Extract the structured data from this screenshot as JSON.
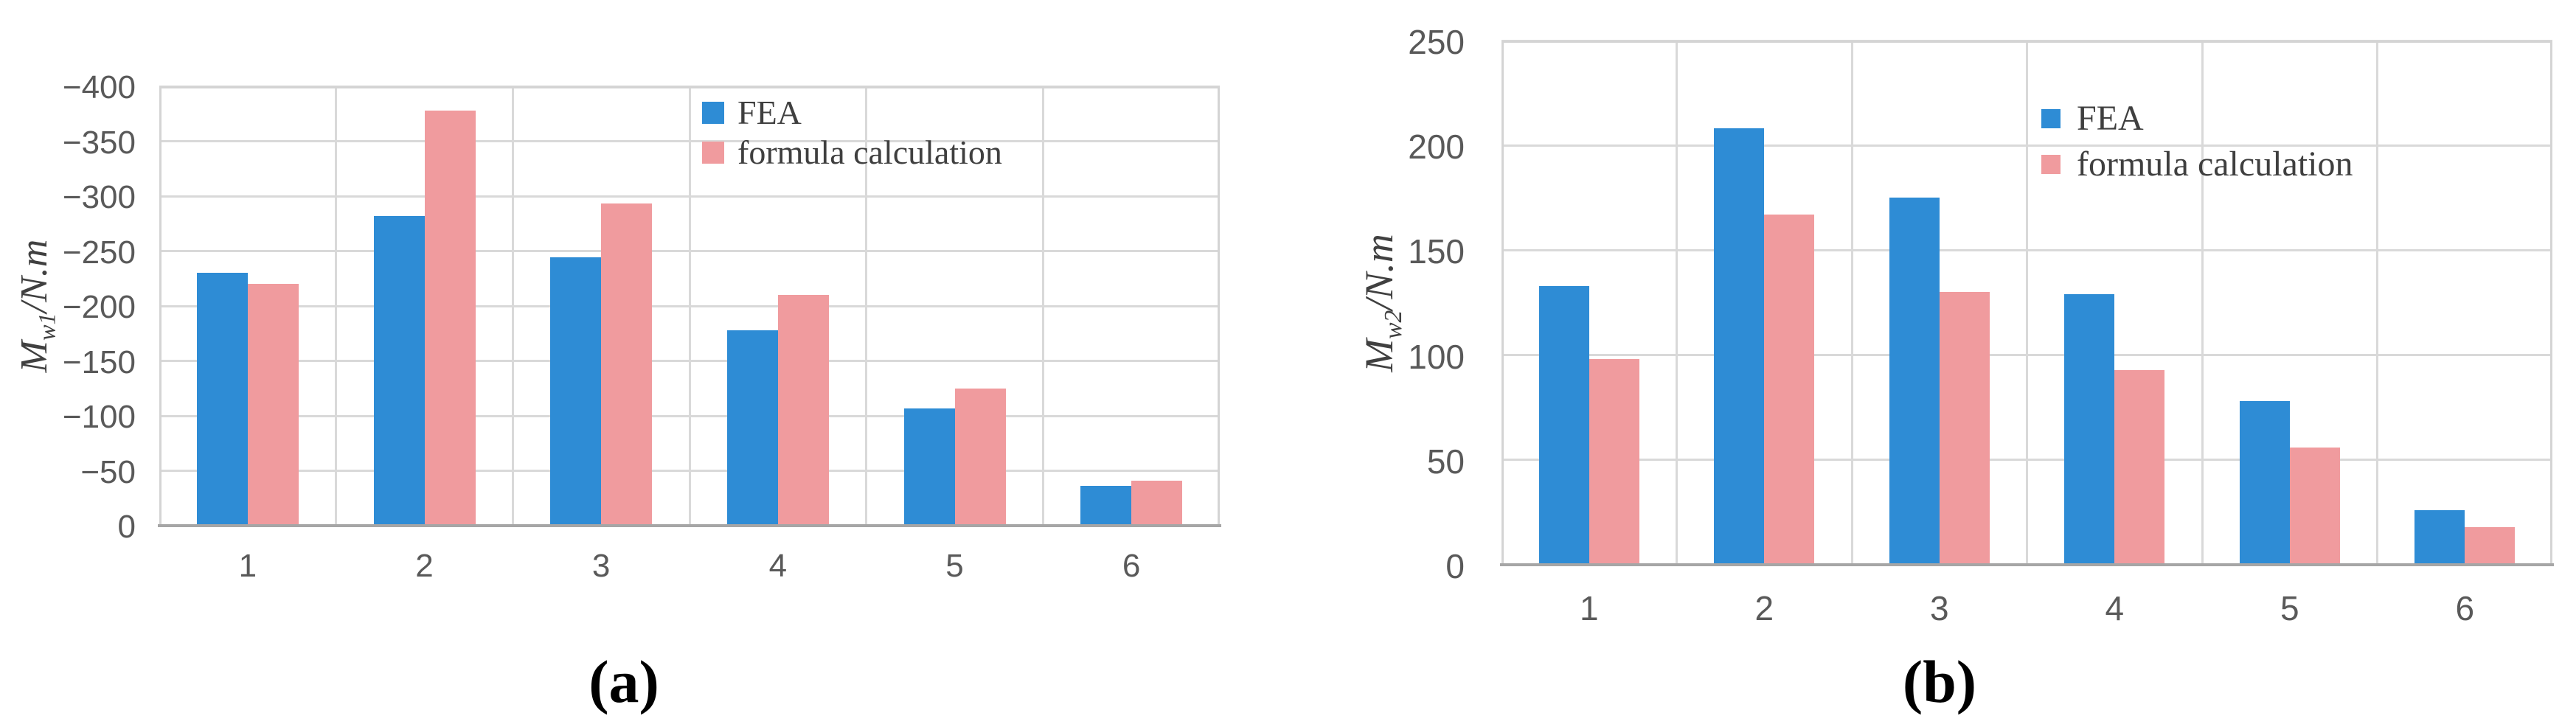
{
  "style_colors": {
    "fea_bar": "#2E8CD5",
    "formula_bar": "#F09B9E",
    "grid_line": "#D9D9D9",
    "axis_line": "#A6A6A6",
    "tick_text": "#595959",
    "legend_text": "#3F3F3F"
  },
  "chart_data": [
    {
      "type": "bar",
      "caption": "(a)",
      "title": "",
      "categories": [
        "1",
        "2",
        "3",
        "4",
        "5",
        "6"
      ],
      "series": [
        {
          "name": "FEA",
          "color": "#2E8CD5",
          "values": [
            -230,
            -282,
            -244,
            -178,
            -107,
            -36
          ]
        },
        {
          "name": "formula calculation",
          "color": "#F09B9E",
          "values": [
            -220,
            -378,
            -293,
            -210,
            -125,
            -41
          ]
        }
      ],
      "xlabel": "",
      "ylabel": "Mw1/N.m",
      "ylabel_parts": {
        "prefix": "M",
        "sub": "w1",
        "suffix": "/N.m"
      },
      "ylim": [
        0,
        -400
      ],
      "yticks": [
        0,
        -50,
        -100,
        -150,
        -200,
        -250,
        -300,
        -350,
        -400
      ],
      "ytick_labels": [
        "0",
        "−50",
        "−100",
        "−150",
        "−200",
        "−250",
        "−300",
        "−350",
        "−400"
      ],
      "axis_inverted": true,
      "grid": true,
      "legend_position": "top-center-inside"
    },
    {
      "type": "bar",
      "caption": "(b)",
      "title": "",
      "categories": [
        "1",
        "2",
        "3",
        "4",
        "5",
        "6"
      ],
      "series": [
        {
          "name": "FEA",
          "color": "#2E8CD5",
          "values": [
            133,
            208,
            175,
            129,
            78,
            26
          ]
        },
        {
          "name": "formula calculation",
          "color": "#F09B9E",
          "values": [
            98,
            167,
            130,
            93,
            56,
            18
          ]
        }
      ],
      "xlabel": "",
      "ylabel": "Mw2/N.m",
      "ylabel_parts": {
        "prefix": "M",
        "sub": "w2",
        "suffix": "/N.m"
      },
      "ylim": [
        0,
        250
      ],
      "yticks": [
        0,
        50,
        100,
        150,
        200,
        250
      ],
      "ytick_labels": [
        "0",
        "50",
        "100",
        "150",
        "200",
        "250"
      ],
      "axis_inverted": false,
      "grid": true,
      "legend_position": "top-center-inside"
    }
  ]
}
